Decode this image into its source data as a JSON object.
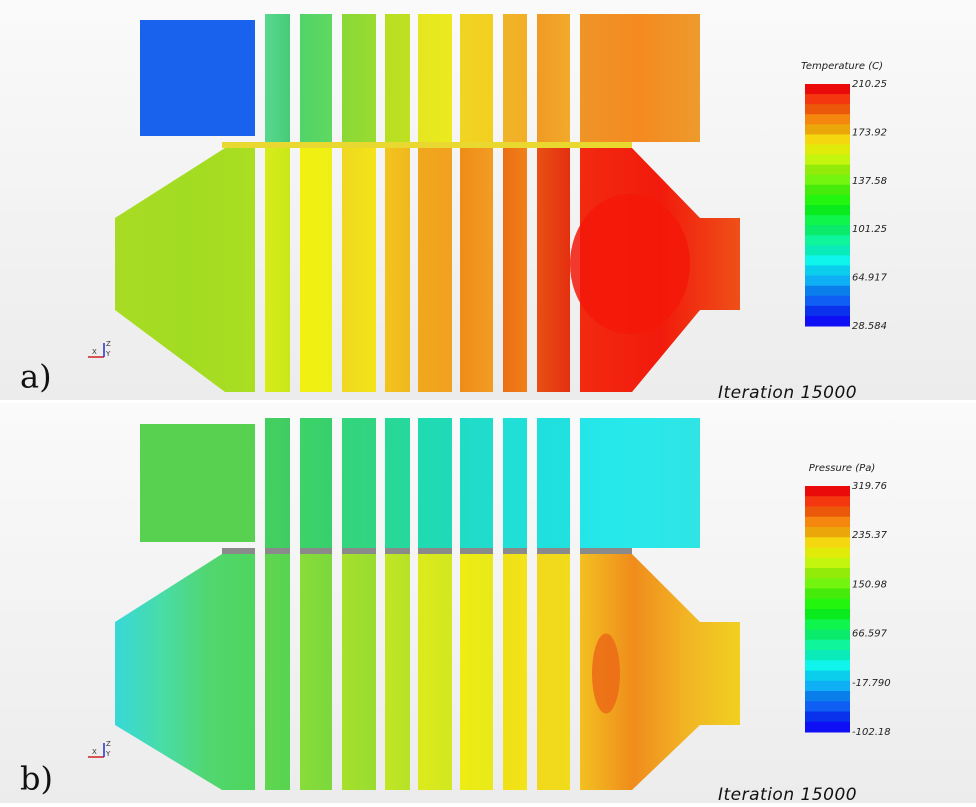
{
  "panels": [
    {
      "label": "a)",
      "legend": {
        "title": "Temperature (C)",
        "ticks": [
          "210.25",
          "173.92",
          "137.58",
          "101.25",
          "64.917",
          "28.584"
        ]
      },
      "iteration": "Iteration 15000",
      "axes": {
        "x": "X",
        "y": "Y",
        "z": "Z"
      }
    },
    {
      "label": "b)",
      "legend": {
        "title": "Pressure (Pa)",
        "ticks": [
          "319.76",
          "235.37",
          "150.98",
          "66.597",
          "-17.790",
          "-102.18"
        ]
      },
      "iteration": "Iteration 15000",
      "axes": {
        "x": "X",
        "y": "Y",
        "z": "Z"
      }
    }
  ]
}
